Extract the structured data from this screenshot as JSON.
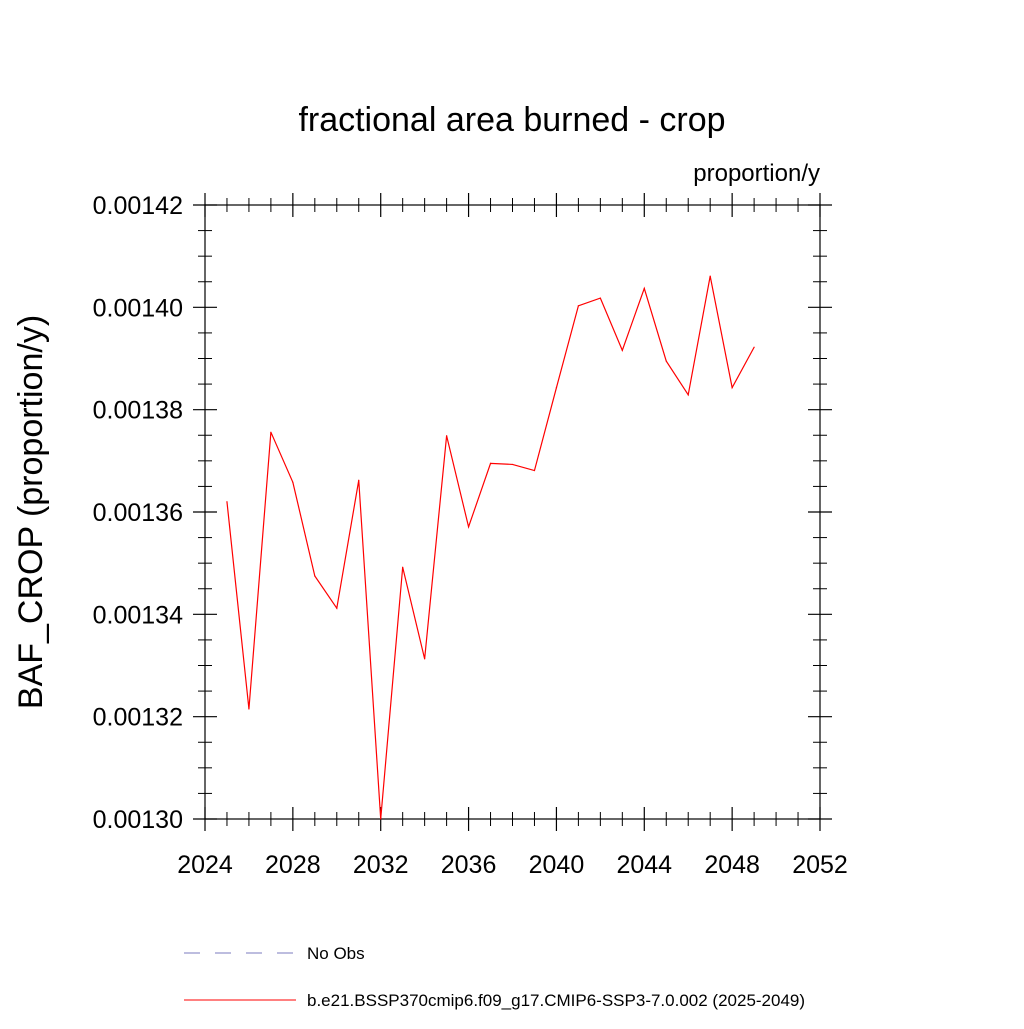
{
  "chart_data": {
    "type": "line",
    "title": "fractional area burned - crop",
    "units_label": "proportion/y",
    "ylabel": "BAF_CROP  (proportion/y)",
    "xlabel": "",
    "xlim": [
      2024,
      2052
    ],
    "ylim": [
      0.0013,
      0.00142
    ],
    "x_ticks": [
      2024,
      2028,
      2032,
      2036,
      2040,
      2044,
      2048,
      2052
    ],
    "x_tick_labels": [
      "2024",
      "2028",
      "2032",
      "2036",
      "2040",
      "2044",
      "2048",
      "2052"
    ],
    "y_ticks": [
      0.0013,
      0.00132,
      0.00134,
      0.00136,
      0.00138,
      0.0014,
      0.00142
    ],
    "y_tick_labels": [
      "0.00130",
      "0.00132",
      "0.00134",
      "0.00136",
      "0.00138",
      "0.00140",
      "0.00142"
    ],
    "grid": false,
    "legend_position": "bottom",
    "series": [
      {
        "name": "b.e21.BSSP370cmip6.f09_g17.CMIP6-SSP3-7.0.002 (2025-2049)",
        "color": "#ff0000",
        "dash": "solid",
        "x": [
          2025,
          2026,
          2027,
          2028,
          2029,
          2030,
          2031,
          2032,
          2033,
          2034,
          2035,
          2036,
          2037,
          2038,
          2039,
          2040,
          2041,
          2042,
          2043,
          2044,
          2045,
          2046,
          2047,
          2048,
          2049
        ],
        "y": [
          0.001362,
          0.0013215,
          0.0013756,
          0.0013658,
          0.0013475,
          0.0013412,
          0.0013662,
          0.0013,
          0.0013492,
          0.0013313,
          0.0013749,
          0.0013571,
          0.0013695,
          0.0013693,
          0.0013681,
          0.0013843,
          0.0014003,
          0.0014018,
          0.0013916,
          0.0014037,
          0.0013895,
          0.0013829,
          0.0014061,
          0.0013843,
          0.0013922
        ]
      }
    ],
    "legend": [
      {
        "label": "No Obs",
        "color": "#7b7bbf",
        "dash": "dashed"
      },
      {
        "label": "b.e21.BSSP370cmip6.f09_g17.CMIP6-SSP3-7.0.002 (2025-2049)",
        "color": "#ff0000",
        "dash": "solid"
      }
    ]
  }
}
